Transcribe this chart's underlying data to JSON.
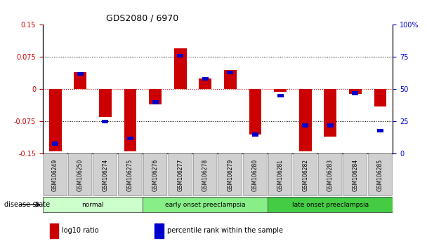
{
  "title": "GDS2080 / 6970",
  "samples": [
    "GSM106249",
    "GSM106250",
    "GSM106274",
    "GSM106275",
    "GSM106276",
    "GSM106277",
    "GSM106278",
    "GSM106279",
    "GSM106280",
    "GSM106281",
    "GSM106282",
    "GSM106283",
    "GSM106284",
    "GSM106285"
  ],
  "log10_ratio": [
    -0.145,
    0.04,
    -0.065,
    -0.145,
    -0.035,
    0.095,
    0.025,
    0.045,
    -0.105,
    -0.005,
    -0.145,
    -0.11,
    -0.01,
    -0.04
  ],
  "percentile_rank": [
    8,
    62,
    25,
    12,
    40,
    76,
    58,
    63,
    15,
    45,
    22,
    22,
    47,
    18
  ],
  "groups": [
    {
      "label": "normal",
      "start": 0,
      "end": 4,
      "color": "#ccffcc"
    },
    {
      "label": "early onset preeclampsia",
      "start": 4,
      "end": 9,
      "color": "#88ee88"
    },
    {
      "label": "late onset preeclampsia",
      "start": 9,
      "end": 14,
      "color": "#44cc44"
    }
  ],
  "ylim_left": [
    -0.15,
    0.15
  ],
  "ylim_right": [
    0,
    100
  ],
  "yticks_left": [
    -0.15,
    -0.075,
    0,
    0.075,
    0.15
  ],
  "yticks_left_labels": [
    "-0.15",
    "-0.075",
    "0",
    "0.075",
    "0.15"
  ],
  "yticks_right": [
    0,
    25,
    50,
    75,
    100
  ],
  "yticks_right_labels": [
    "0",
    "25",
    "50",
    "75",
    "100%"
  ],
  "bar_color_red": "#cc0000",
  "bar_color_blue": "#0000cc",
  "legend_red_label": "log10 ratio",
  "legend_blue_label": "percentile rank within the sample",
  "disease_state_label": "disease state",
  "bar_width": 0.5,
  "blue_bar_width": 0.25
}
